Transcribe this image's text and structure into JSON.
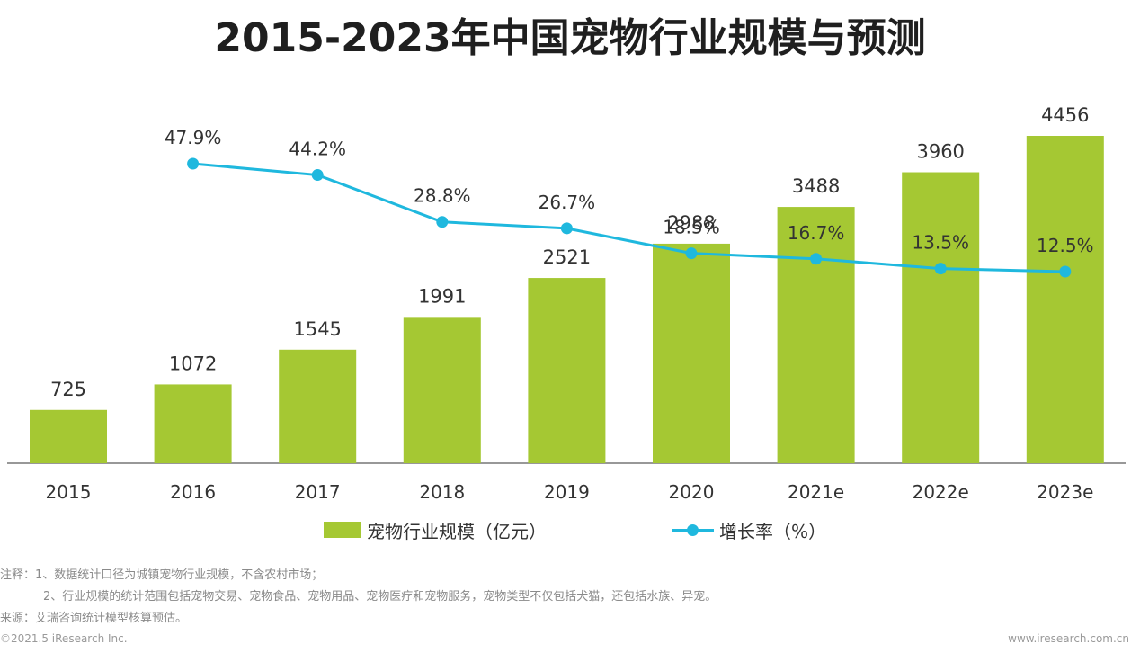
{
  "title": "2015-2023年中国宠物行业规模与预测",
  "colors": {
    "bar": "#a5c833",
    "line": "#1fb8de",
    "axis": "#777777"
  },
  "chart_data": {
    "type": "bar",
    "categories": [
      "2015",
      "2016",
      "2017",
      "2018",
      "2019",
      "2020",
      "2021e",
      "2022e",
      "2023e"
    ],
    "series": [
      {
        "name": "宠物行业规模（亿元）",
        "type": "bar",
        "values": [
          725,
          1072,
          1545,
          1991,
          2521,
          2988,
          3488,
          3960,
          4456
        ]
      },
      {
        "name": "增长率（%）",
        "type": "line",
        "values": [
          null,
          47.9,
          44.2,
          28.8,
          26.7,
          18.5,
          16.7,
          13.5,
          12.5
        ],
        "labels": [
          "",
          "47.9%",
          "44.2%",
          "28.8%",
          "26.7%",
          "18.5%",
          "16.7%",
          "13.5%",
          "12.5%"
        ]
      }
    ],
    "bar_labels": [
      "725",
      "1072",
      "1545",
      "1991",
      "2521",
      "2988",
      "3488",
      "3960",
      "4456"
    ],
    "ylim_bar": [
      0,
      4800
    ],
    "ylim_line": [
      0,
      100
    ],
    "grid": false,
    "legend": "bottom"
  },
  "notes": [
    "注释：1、数据统计口径为城镇宠物行业规模，不含农村市场；",
    "2、行业规模的统计范围包括宠物交易、宠物食品、宠物用品、宠物医疗和宠物服务，宠物类型不仅包括犬猫，还包括水族、异宠。",
    "来源：艾瑞咨询统计模型核算预估。"
  ],
  "footer": {
    "copyright": "©2021.5 iResearch Inc.",
    "website": "www.iresearch.com.cn"
  }
}
